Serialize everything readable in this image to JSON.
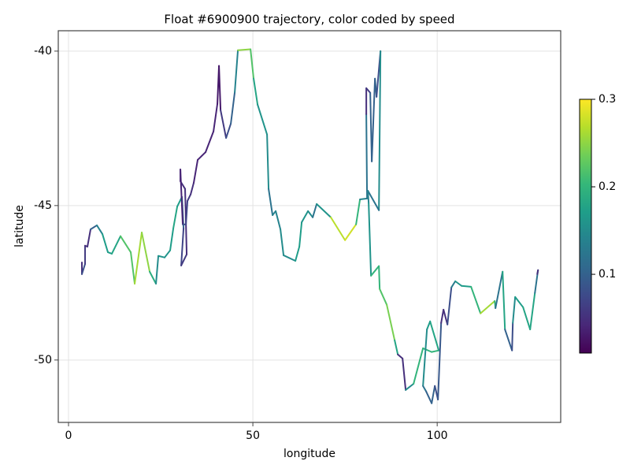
{
  "chart_data": {
    "type": "line",
    "title": "Float #6900900 trajectory, color coded by speed",
    "xlabel": "longitude",
    "ylabel": "latitude",
    "x": [
      3.63,
      3.63,
      4.49,
      4.49,
      5.13,
      5.98,
      7.69,
      9.19,
      10.68,
      11.75,
      14.1,
      16.88,
      17.95,
      19.87,
      22.01,
      23.72,
      24.36,
      26.07,
      27.56,
      28.42,
      29.49,
      30.77,
      31.2,
      30.56,
      32.05,
      31.62,
      30.34,
      30.34,
      30.98,
      31.84,
      32.26,
      33.12,
      33.97,
      35.04,
      37.18,
      39.32,
      40.38,
      40.81,
      41.24,
      42.74,
      44.02,
      45.09,
      45.94,
      49.36,
      50.21,
      51.28,
      53.85,
      54.27,
      55.34,
      56.2,
      57.48,
      58.33,
      61.54,
      62.61,
      63.25,
      64.96,
      66.24,
      67.31,
      71.15,
      75.0,
      77.99,
      79.06,
      80.98,
      80.77,
      80.77,
      81.84,
      82.26,
      83.12,
      83.55,
      84.62,
      84.19,
      81.2,
      81.41,
      82.05,
      84.19,
      84.4,
      86.32,
      88.46,
      89.32,
      90.6,
      91.45,
      93.59,
      96.15,
      98.5,
      100.43,
      98.08,
      97.22,
      96.15,
      97.01,
      98.5,
      99.36,
      100.21,
      101.07,
      101.71,
      102.78,
      103.85,
      104.91,
      106.62,
      109.19,
      111.75,
      115.6,
      115.81,
      117.74,
      118.38,
      120.3,
      120.51,
      121.15,
      123.29,
      125.21,
      126.5,
      127.35,
      127.14
    ],
    "y": [
      -46.84,
      -47.22,
      -46.89,
      -46.3,
      -46.33,
      -45.77,
      -45.64,
      -45.92,
      -46.51,
      -46.56,
      -45.99,
      -46.51,
      -47.53,
      -45.87,
      -47.14,
      -47.53,
      -46.63,
      -46.68,
      -46.45,
      -45.74,
      -45.03,
      -44.72,
      -45.74,
      -46.94,
      -46.58,
      -44.46,
      -44.21,
      -43.83,
      -45.61,
      -45.61,
      -44.85,
      -44.64,
      -44.26,
      -43.52,
      -43.27,
      -42.6,
      -41.71,
      -40.48,
      -41.91,
      -42.81,
      -42.35,
      -41.33,
      -39.97,
      -39.94,
      -40.89,
      -41.73,
      -42.7,
      -44.46,
      -45.31,
      -45.18,
      -45.77,
      -46.61,
      -46.79,
      -46.33,
      -45.54,
      -45.18,
      -45.38,
      -44.95,
      -45.38,
      -46.12,
      -45.61,
      -44.8,
      -44.77,
      -42.04,
      -41.2,
      -41.35,
      -43.57,
      -40.89,
      -41.48,
      -40.0,
      -45.15,
      -44.52,
      -44.92,
      -47.27,
      -46.96,
      -47.7,
      -48.21,
      -49.36,
      -49.82,
      -49.95,
      -50.97,
      -50.77,
      -49.62,
      -49.74,
      -49.69,
      -48.75,
      -49.01,
      -50.84,
      -51.02,
      -51.4,
      -50.84,
      -51.28,
      -48.8,
      -48.37,
      -48.85,
      -47.65,
      -47.45,
      -47.6,
      -47.63,
      -48.49,
      -48.09,
      -48.32,
      -47.14,
      -49.01,
      -49.69,
      -48.8,
      -47.96,
      -48.29,
      -49.01,
      -47.83,
      -47.09,
      -47.22
    ],
    "speed": [
      0.05,
      0.08,
      0.06,
      0.05,
      0.05,
      0.1,
      0.14,
      0.17,
      0.17,
      0.18,
      0.22,
      0.22,
      0.26,
      0.25,
      0.19,
      0.15,
      0.16,
      0.16,
      0.17,
      0.18,
      0.17,
      0.1,
      0.07,
      0.06,
      0.05,
      0.05,
      0.04,
      0.04,
      0.08,
      0.07,
      0.06,
      0.05,
      0.04,
      0.04,
      0.04,
      0.04,
      0.03,
      0.03,
      0.06,
      0.08,
      0.1,
      0.14,
      0.25,
      0.22,
      0.18,
      0.16,
      0.15,
      0.12,
      0.14,
      0.14,
      0.15,
      0.15,
      0.17,
      0.17,
      0.16,
      0.15,
      0.12,
      0.16,
      0.27,
      0.28,
      0.2,
      0.14,
      0.12,
      0.05,
      0.06,
      0.1,
      0.1,
      0.1,
      0.08,
      0.15,
      0.12,
      0.14,
      0.16,
      0.2,
      0.2,
      0.22,
      0.24,
      0.18,
      0.05,
      0.05,
      0.15,
      0.2,
      0.2,
      0.2,
      0.18,
      0.17,
      0.15,
      0.12,
      0.1,
      0.1,
      0.08,
      0.09,
      0.05,
      0.05,
      0.08,
      0.13,
      0.16,
      0.17,
      0.2,
      0.26,
      0.2,
      0.12,
      0.18,
      0.1,
      0.08,
      0.15,
      0.17,
      0.18,
      0.18,
      0.12,
      0.05,
      0.05
    ],
    "colormap": "viridis",
    "clim": [
      0.01,
      0.3
    ],
    "cticks": [
      0.1,
      0.2,
      0.3
    ],
    "xlim": [
      -2.78,
      133.5
    ],
    "ylim": [
      -52.02,
      -39.34
    ],
    "xticks": [
      0,
      50,
      100
    ],
    "yticks": [
      -50,
      -45,
      -40
    ],
    "grid": true
  }
}
